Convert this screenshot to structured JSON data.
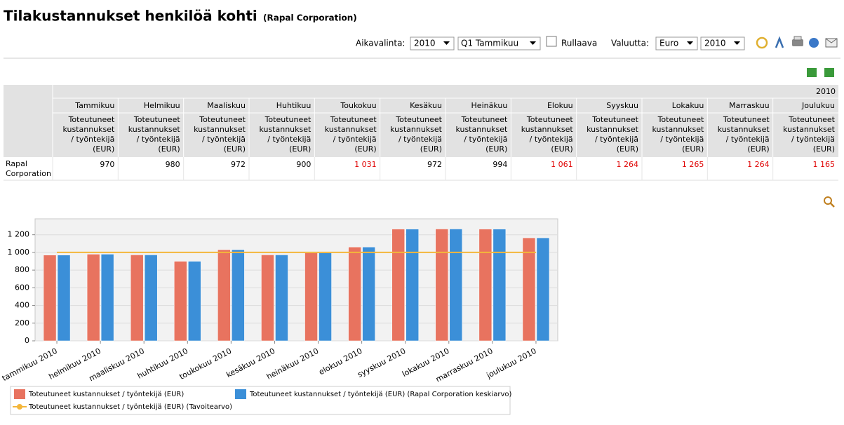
{
  "header": {
    "title": "Tilakustannukset henkilöä kohti",
    "subtitle": "(Rapal Corporation)"
  },
  "toolbar": {
    "period_label": "Aikavalinta:",
    "year": "2010",
    "quarter": "Q1 Tammikuu",
    "rolling": "Rullaava",
    "currency_label": "Valuutta:",
    "currency": "Euro",
    "currency_year": "2010"
  },
  "table": {
    "year": "2010",
    "months": [
      "Tammikuu",
      "Helmikuu",
      "Maaliskuu",
      "Huhtikuu",
      "Toukokuu",
      "Kesäkuu",
      "Heinäkuu",
      "Elokuu",
      "Syyskuu",
      "Lokakuu",
      "Marraskuu",
      "Joulukuu"
    ],
    "measure": "Toteutuneet kustannukset / työntekijä (EUR)",
    "row_label": "Rapal Corporation",
    "cells": [
      "970",
      "980",
      "972",
      "900",
      "1 031",
      "972",
      "994",
      "1 061",
      "1 264",
      "1 265",
      "1 264",
      "1 165"
    ],
    "cell_colors": [
      "#000000",
      "#000000",
      "#000000",
      "#000000",
      "#e00000",
      "#000000",
      "#000000",
      "#e00000",
      "#e00000",
      "#e00000",
      "#e00000",
      "#e00000"
    ]
  },
  "chart_data": {
    "type": "bar",
    "categories": [
      "tammikuu 2010",
      "helmikuu 2010",
      "maaliskuu 2010",
      "huhtikuu 2010",
      "toukokuu 2010",
      "kesäkuu 2010",
      "heinäkuu 2010",
      "elokuu 2010",
      "syyskuu 2010",
      "lokakuu 2010",
      "marraskuu 2010",
      "joulukuu 2010"
    ],
    "series": [
      {
        "name": "Toteutuneet kustannukset / työntekijä (EUR)",
        "color": "#e8735f",
        "type": "bar",
        "values": [
          970,
          980,
          972,
          900,
          1031,
          972,
          994,
          1061,
          1264,
          1265,
          1264,
          1165
        ]
      },
      {
        "name": "Toteutuneet kustannukset / työntekijä (EUR) (Rapal Corporation keskiarvo)",
        "color": "#3b8fd8",
        "type": "bar",
        "values": [
          970,
          980,
          972,
          900,
          1031,
          972,
          994,
          1061,
          1264,
          1265,
          1264,
          1165
        ]
      },
      {
        "name": "Toteutuneet kustannukset / työntekijä (EUR) (Tavoitearvo)",
        "color": "#f4b63a",
        "type": "line",
        "values": [
          1000,
          1000,
          1000,
          1000,
          1000,
          1000,
          1000,
          1000,
          1000,
          1000,
          1000,
          1000
        ]
      }
    ],
    "ylim": [
      0,
      1380
    ],
    "yticks": [
      0,
      200,
      400,
      600,
      800,
      {
        "value": 1000,
        "label": "1 000"
      },
      {
        "value": 1200,
        "label": "1 200"
      }
    ],
    "grid": true
  }
}
